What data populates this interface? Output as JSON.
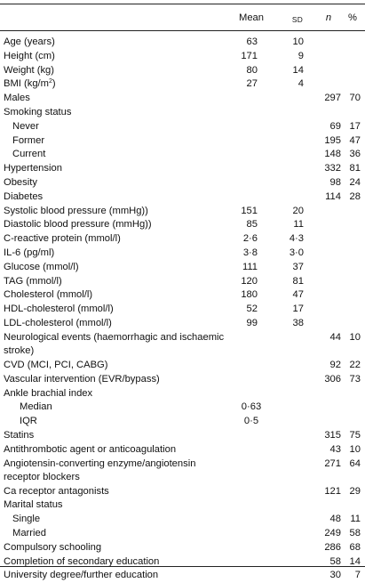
{
  "header": {
    "mean": "Mean",
    "sd": "SD",
    "n": "n",
    "pct": "%"
  },
  "rows": [
    {
      "label": "Age (years)",
      "indent": 0,
      "mean": "63",
      "sd": "10",
      "n": "",
      "pct": ""
    },
    {
      "label": "Height (cm)",
      "indent": 0,
      "mean": "171",
      "sd": "9",
      "n": "",
      "pct": ""
    },
    {
      "label": "Weight (kg)",
      "indent": 0,
      "mean": "80",
      "sd": "14",
      "n": "",
      "pct": ""
    },
    {
      "label": "BMI (kg/m",
      "label_sup": "2",
      "label_after": ")",
      "indent": 0,
      "mean": "27",
      "sd": "4",
      "n": "",
      "pct": ""
    },
    {
      "label": "Males",
      "indent": 0,
      "mean": "",
      "sd": "",
      "n": "297",
      "pct": "70"
    },
    {
      "label": "Smoking status",
      "indent": 0,
      "mean": "",
      "sd": "",
      "n": "",
      "pct": ""
    },
    {
      "label": "Never",
      "indent": 1,
      "mean": "",
      "sd": "",
      "n": "69",
      "pct": "17"
    },
    {
      "label": "Former",
      "indent": 1,
      "mean": "",
      "sd": "",
      "n": "195",
      "pct": "47"
    },
    {
      "label": "Current",
      "indent": 1,
      "mean": "",
      "sd": "",
      "n": "148",
      "pct": "36"
    },
    {
      "label": "Hypertension",
      "indent": 0,
      "mean": "",
      "sd": "",
      "n": "332",
      "pct": "81"
    },
    {
      "label": "Obesity",
      "indent": 0,
      "mean": "",
      "sd": "",
      "n": "98",
      "pct": "24"
    },
    {
      "label": "Diabetes",
      "indent": 0,
      "mean": "",
      "sd": "",
      "n": "114",
      "pct": "28"
    },
    {
      "label": "Systolic blood pressure (mmHg))",
      "indent": 0,
      "mean": "151",
      "sd": "20",
      "n": "",
      "pct": ""
    },
    {
      "label": "Diastolic blood pressure (mmHg))",
      "indent": 0,
      "mean": "85",
      "sd": "11",
      "n": "",
      "pct": ""
    },
    {
      "label": "C-reactive protein (mmol/l)",
      "indent": 0,
      "mean": "2·6",
      "sd": "4·3",
      "n": "",
      "pct": ""
    },
    {
      "label": "IL-6 (pg/ml)",
      "indent": 0,
      "mean": "3·8",
      "sd": "3·0",
      "n": "",
      "pct": ""
    },
    {
      "label": "Glucose (mmol/l)",
      "indent": 0,
      "mean": "111",
      "sd": "37",
      "n": "",
      "pct": ""
    },
    {
      "label": "TAG (mmol/l)",
      "indent": 0,
      "mean": "120",
      "sd": "81",
      "n": "",
      "pct": ""
    },
    {
      "label": "Cholesterol (mmol/l)",
      "indent": 0,
      "mean": "180",
      "sd": "47",
      "n": "",
      "pct": ""
    },
    {
      "label": "HDL-cholesterol (mmol/l)",
      "indent": 0,
      "mean": "52",
      "sd": "17",
      "n": "",
      "pct": ""
    },
    {
      "label": "LDL-cholesterol (mmol/l)",
      "indent": 0,
      "mean": "99",
      "sd": "38",
      "n": "",
      "pct": ""
    },
    {
      "label": "Neurological events (haemorrhagic and ischaemic stroke)",
      "indent": 0,
      "two_line": true,
      "numbers_top": true,
      "mean": "",
      "sd": "",
      "n": "44",
      "pct": "10"
    },
    {
      "label": "CVD (MCI, PCI, CABG)",
      "indent": 0,
      "mean": "",
      "sd": "",
      "n": "92",
      "pct": "22"
    },
    {
      "label": "Vascular intervention (EVR/bypass)",
      "indent": 0,
      "mean": "",
      "sd": "",
      "n": "306",
      "pct": "73"
    },
    {
      "label": "Ankle brachial index",
      "indent": 0,
      "mean": "",
      "sd": "",
      "n": "",
      "pct": ""
    },
    {
      "label": "Median",
      "indent": 2,
      "mean_mid": "0·63",
      "mean": "",
      "sd": "",
      "n": "",
      "pct": ""
    },
    {
      "label": "IQR",
      "indent": 2,
      "mean_mid": "0·5",
      "mean": "",
      "sd": "",
      "n": "",
      "pct": ""
    },
    {
      "label": "Statins",
      "indent": 0,
      "mean": "",
      "sd": "",
      "n": "315",
      "pct": "75"
    },
    {
      "label": "Antithrombotic agent or anticoagulation",
      "indent": 0,
      "mean": "",
      "sd": "",
      "n": "43",
      "pct": "10"
    },
    {
      "label": "Angiotensin-converting enzyme/angiotensin receptor blockers",
      "indent": 0,
      "two_line": true,
      "numbers_top": true,
      "mean": "",
      "sd": "",
      "n": "271",
      "pct": "64"
    },
    {
      "label": "Ca receptor antagonists",
      "indent": 0,
      "mean": "",
      "sd": "",
      "n": "121",
      "pct": "29"
    },
    {
      "label": "Marital status",
      "indent": 0,
      "mean": "",
      "sd": "",
      "n": "",
      "pct": ""
    },
    {
      "label": "Single",
      "indent": 1,
      "mean": "",
      "sd": "",
      "n": "48",
      "pct": "11"
    },
    {
      "label": "Married",
      "indent": 1,
      "mean": "",
      "sd": "",
      "n": "249",
      "pct": "58"
    },
    {
      "label": "Compulsory schooling",
      "indent": 0,
      "mean": "",
      "sd": "",
      "n": "286",
      "pct": "68"
    },
    {
      "label": "Completion of secondary education",
      "indent": 0,
      "mean": "",
      "sd": "",
      "n": "58",
      "pct": "14"
    },
    {
      "label": "University degree/further education",
      "indent": 0,
      "mean": "",
      "sd": "",
      "n": "30",
      "pct": "7"
    }
  ]
}
